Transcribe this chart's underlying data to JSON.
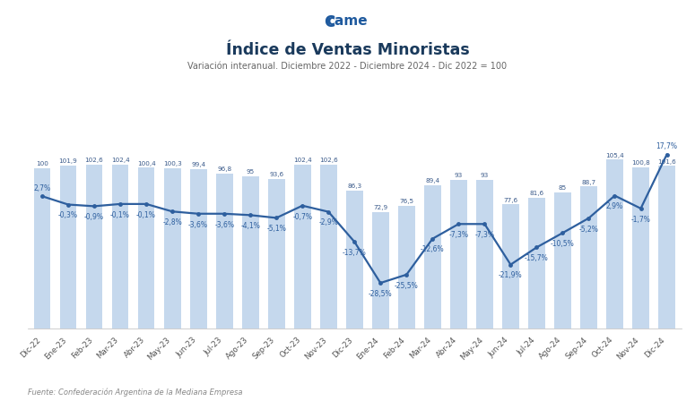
{
  "categories": [
    "Dic-22",
    "Ene-23",
    "Feb-23",
    "Mar-23",
    "Abr-23",
    "May-23",
    "Jun-23",
    "Jul-23",
    "Ago-23",
    "Sep-23",
    "Oct-23",
    "Nov-23",
    "Dic-23",
    "Ene-24",
    "Feb-24",
    "Mar-24",
    "Abr-24",
    "May-24",
    "Jun-24",
    "Jul-24",
    "Ago-24",
    "Sep-24",
    "Oct-24",
    "Nov-24",
    "Dic-24"
  ],
  "indice": [
    100,
    101.9,
    102.6,
    102.4,
    100.4,
    100.3,
    99.4,
    96.8,
    95,
    93.6,
    102.4,
    102.6,
    86.3,
    72.9,
    76.5,
    89.4,
    93,
    93,
    77.6,
    81.6,
    85,
    88.7,
    105.4,
    100.8,
    101.6
  ],
  "var_ia": [
    2.7,
    -0.3,
    -0.9,
    -0.1,
    -0.1,
    -2.8,
    -3.6,
    -3.6,
    -4.1,
    -5.1,
    -0.7,
    -2.9,
    -13.7,
    -28.5,
    -25.5,
    -12.6,
    -7.3,
    -7.3,
    -21.9,
    -15.7,
    -10.5,
    -5.2,
    2.9,
    -1.7,
    17.7
  ],
  "indice_labels": [
    "100",
    "101,9",
    "102,6",
    "102,4",
    "100,4",
    "100,3",
    "99,4",
    "96,8",
    "95",
    "93,6",
    "102,4",
    "102,6",
    "86,3",
    "72,9",
    "76,5",
    "89,4",
    "93",
    "93",
    "77,6",
    "81,6",
    "85",
    "88,7",
    "105,4",
    "100,8",
    "101,6"
  ],
  "var_ia_labels": [
    "2,7%",
    "-0,3%",
    "-0,9%",
    "-0,1%",
    "-0,1%",
    "-2,8%",
    "-3,6%",
    "-3,6%",
    "-4,1%",
    "-5,1%",
    "-0,7%",
    "-2,9%",
    "-13,7%",
    "-28,5%",
    "-25,5%",
    "-12,6%",
    "-7,3%",
    "-7,3%",
    "-21,9%",
    "-15,7%",
    "-10,5%",
    "-5,2%",
    "2,9%",
    "-1,7%",
    "17,7%"
  ],
  "bar_color": "#c5d8ed",
  "line_color": "#2e5f9e",
  "title": "Índice de Ventas Minoristas",
  "subtitle": "Variación interanual. Diciembre 2022 - Diciembre 2024 - Dic 2022 = 100",
  "footer": "Fuente: Confederación Argentina de la Mediana Empresa",
  "bg_color": "#ffffff",
  "bar_ylim": [
    0,
    130
  ],
  "line_ylim": [
    -45,
    30
  ],
  "title_color": "#1a3a5c",
  "subtitle_color": "#666666",
  "label_color": "#3a5a8a",
  "indice_label_color": "#3a5a8a"
}
